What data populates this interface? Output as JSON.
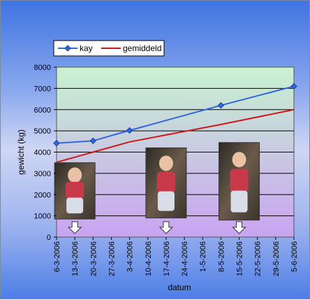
{
  "chart_data": {
    "type": "line",
    "title": "",
    "xlabel": "datum",
    "ylabel": "gewicht (kg)",
    "ylim": [
      0,
      8000
    ],
    "ytick_step": 1000,
    "x_categories": [
      "6-3-2006",
      "13-3-2006",
      "20-3-2006",
      "27-3-2006",
      "3-4-2006",
      "10-4-2006",
      "17-4-2006",
      "24-4-2006",
      "1-5-2006",
      "8-5-2006",
      "15-5-2006",
      "22-5-2006",
      "29-5-2006",
      "5-6-2006"
    ],
    "grid": "horizontal",
    "legend_position": "top-left",
    "plot_background": [
      "#c8f2d0",
      "#c9a3f2"
    ],
    "series": [
      {
        "name": "kay",
        "color": "#3366e0",
        "marker": "diamond",
        "points": [
          {
            "x": "6-3-2006",
            "y": 4420
          },
          {
            "x": "20-3-2006",
            "y": 4530
          },
          {
            "x": "3-4-2006",
            "y": 5020
          },
          {
            "x": "8-5-2006",
            "y": 6200
          },
          {
            "x": "5-6-2006",
            "y": 7100
          }
        ]
      },
      {
        "name": "gemiddeld",
        "color": "#cc1a1a",
        "marker": "none",
        "points": [
          {
            "x": "6-3-2006",
            "y": 3520
          },
          {
            "x": "20-3-2006",
            "y": 4000
          },
          {
            "x": "3-4-2006",
            "y": 4480
          },
          {
            "x": "8-5-2006",
            "y": 5300
          },
          {
            "x": "5-6-2006",
            "y": 6000
          }
        ]
      }
    ],
    "photos": [
      {
        "at": "13-3-2006",
        "top_value": 3500,
        "bottom_value": 850
      },
      {
        "at": "17-4-2006",
        "top_value": 4200,
        "bottom_value": 900
      },
      {
        "at": "15-5-2006",
        "top_value": 4450,
        "bottom_value": 800
      }
    ]
  }
}
